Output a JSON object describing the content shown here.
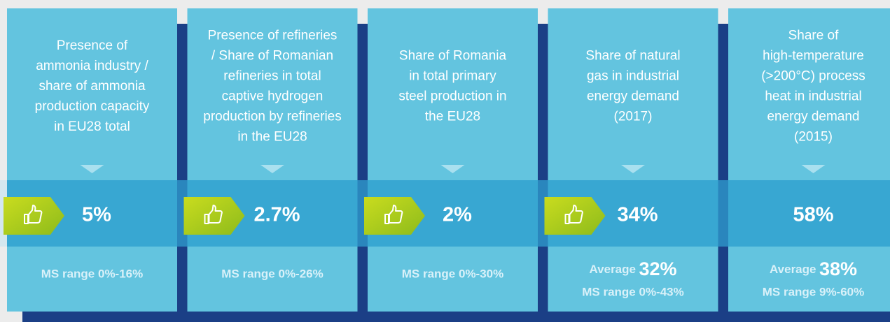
{
  "cards": [
    {
      "description": [
        "Presence of",
        "ammonia industry /",
        "share of ammonia",
        "production capacity",
        "in EU28 total"
      ],
      "thumb": true,
      "value": "5%",
      "range": "MS range 0%-16%"
    },
    {
      "description": [
        "Presence of refineries",
        "/ Share of Romanian",
        "refineries in total",
        "captive hydrogen",
        "production by refineries",
        "in the EU28"
      ],
      "thumb": true,
      "value": "2.7%",
      "range": "MS range 0%-26%"
    },
    {
      "description": [
        "Share of Romania",
        "in total primary",
        "steel production in",
        "the EU28"
      ],
      "thumb": true,
      "value": "2%",
      "range": "MS range 0%-30%"
    },
    {
      "description": [
        "Share of natural",
        "gas in industrial",
        "energy demand",
        "(2017)"
      ],
      "thumb": true,
      "value": "34%",
      "average_label": "Average",
      "average_value": "32%",
      "range": "MS range 0%-43%"
    },
    {
      "description": [
        "Share of",
        "high-temperature",
        "(>200°C) process",
        "heat in industrial",
        "energy demand",
        "(2015)"
      ],
      "thumb": false,
      "value": "58%",
      "average_label": "Average",
      "average_value": "38%",
      "range": "MS range 9%-60%"
    }
  ]
}
